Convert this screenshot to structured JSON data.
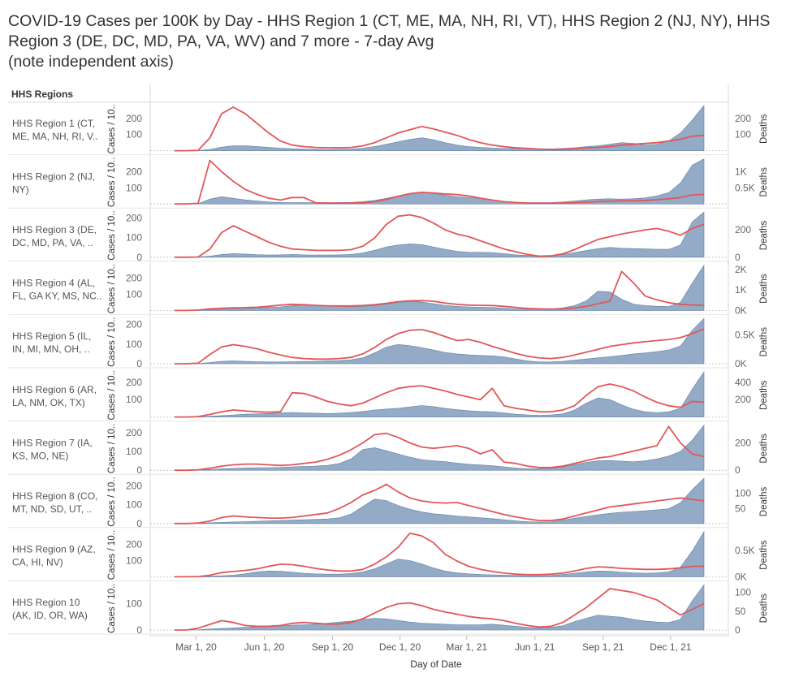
{
  "title": {
    "line1": "COVID-19 Cases per 100K by Day - HHS Region 1 (CT, ME, MA, NH, RI, VT), HHS Region 2 (NJ, NY), HHS",
    "line2": "Region 3 (DE, DC, MD, PA, VA, WV) and 7 more - 7-day Avg",
    "line3": "(note independent axis)"
  },
  "row_header": "HHS Regions",
  "colors": {
    "cases_area": "#8ea7c4",
    "cases_edge": "#5b7fa6",
    "deaths_line": "#e15759"
  },
  "chart_data": {
    "type": "area",
    "title": "COVID-19 Cases per 100K by Day - 7-day Avg (note independent axis)",
    "xlabel": "Day of Date",
    "left_axis_label": "Cases / 10..",
    "right_axis_label": "Deaths",
    "x_ticks": [
      "Mar 1, 20",
      "Jun 1, 20",
      "Sep 1, 20",
      "Dec 1, 20",
      "Mar 1, 21",
      "Jun 1, 21",
      "Sep 1, 21",
      "Dec 1, 21"
    ],
    "x_start": "2020-02-01",
    "x_end": "2022-01-15",
    "series": [
      {
        "name": "Cases per 100K (7-day avg)",
        "axis": "left",
        "mark": "area"
      },
      {
        "name": "Deaths (7-day avg)",
        "axis": "right",
        "mark": "line"
      }
    ],
    "regions": [
      {
        "label": [
          "HHS Region 1 (CT,",
          "ME, MA, NH, RI, V.."
        ],
        "left_ticks": [
          100,
          200
        ],
        "right_ticks": [
          "100",
          "200"
        ],
        "right_values": [
          100,
          200
        ],
        "cases_max": 280,
        "deaths_max": 280,
        "cases": [
          0,
          0,
          1,
          8,
          22,
          30,
          30,
          26,
          20,
          15,
          12,
          10,
          9,
          8,
          9,
          10,
          15,
          25,
          40,
          55,
          70,
          80,
          68,
          50,
          35,
          25,
          20,
          16,
          14,
          14,
          13,
          12,
          11,
          14,
          18,
          25,
          30,
          40,
          50,
          45,
          35,
          40,
          60,
          110,
          190,
          280
        ],
        "deaths": [
          0,
          0,
          2,
          80,
          230,
          270,
          230,
          170,
          110,
          60,
          35,
          25,
          20,
          18,
          18,
          20,
          30,
          50,
          80,
          110,
          130,
          150,
          135,
          115,
          95,
          70,
          50,
          35,
          25,
          18,
          14,
          10,
          8,
          8,
          12,
          16,
          20,
          26,
          34,
          40,
          45,
          50,
          60,
          70,
          90,
          95
        ]
      },
      {
        "label": [
          "HHS Region 2 (NJ,",
          "NY)"
        ],
        "left_ticks": [
          100,
          200
        ],
        "right_ticks": [
          "0.5K",
          "1K"
        ],
        "right_values": [
          500,
          1000
        ],
        "cases_max": 280,
        "deaths_max": 1400,
        "cases": [
          0,
          0,
          2,
          30,
          45,
          35,
          25,
          18,
          12,
          9,
          8,
          8,
          8,
          8,
          9,
          10,
          14,
          22,
          35,
          50,
          65,
          75,
          65,
          55,
          45,
          40,
          35,
          25,
          15,
          10,
          8,
          8,
          9,
          12,
          18,
          25,
          30,
          32,
          30,
          32,
          38,
          50,
          70,
          130,
          240,
          280
        ],
        "deaths": [
          0,
          0,
          20,
          1350,
          1000,
          700,
          450,
          300,
          180,
          120,
          200,
          200,
          35,
          28,
          25,
          25,
          35,
          70,
          140,
          240,
          320,
          360,
          340,
          310,
          290,
          250,
          180,
          120,
          70,
          45,
          30,
          25,
          25,
          30,
          40,
          55,
          70,
          85,
          95,
          100,
          110,
          130,
          160,
          200,
          280,
          300
        ]
      },
      {
        "label": [
          "HHS Region 3 (DE,",
          "DC, MD, PA, VA, .."
        ],
        "left_ticks": [
          0,
          100,
          200
        ],
        "right_ticks": [
          "0",
          "200"
        ],
        "right_values": [
          0,
          200
        ],
        "cases_max": 230,
        "deaths_max": 330,
        "cases": [
          0,
          0,
          1,
          5,
          14,
          18,
          16,
          13,
          11,
          12,
          14,
          12,
          11,
          11,
          12,
          14,
          22,
          35,
          52,
          62,
          68,
          64,
          52,
          40,
          30,
          26,
          25,
          24,
          18,
          12,
          9,
          8,
          9,
          14,
          24,
          34,
          44,
          50,
          46,
          44,
          42,
          40,
          40,
          62,
          180,
          230
        ],
        "deaths": [
          0,
          0,
          2,
          60,
          180,
          230,
          190,
          150,
          110,
          80,
          60,
          55,
          50,
          50,
          50,
          55,
          80,
          140,
          240,
          300,
          310,
          290,
          250,
          200,
          170,
          150,
          120,
          90,
          60,
          40,
          20,
          8,
          10,
          25,
          55,
          95,
          130,
          150,
          170,
          185,
          200,
          210,
          190,
          160,
          210,
          240
        ]
      },
      {
        "label": [
          "HHS Region 4 (AL,",
          "FL, GA KY, MS, NC.."
        ],
        "left_ticks": [
          100,
          200
        ],
        "right_ticks": [
          "0K",
          "1K",
          "2K"
        ],
        "right_values": [
          0,
          1000,
          2000
        ],
        "cases_max": 280,
        "deaths_max": 2200,
        "cases": [
          0,
          0,
          1,
          5,
          8,
          10,
          12,
          14,
          18,
          22,
          30,
          34,
          32,
          28,
          26,
          24,
          26,
          30,
          40,
          50,
          56,
          52,
          42,
          32,
          25,
          22,
          20,
          18,
          14,
          10,
          8,
          8,
          10,
          16,
          30,
          60,
          120,
          115,
          70,
          40,
          30,
          26,
          24,
          50,
          170,
          280
        ],
        "deaths": [
          0,
          0,
          20,
          80,
          110,
          130,
          140,
          160,
          200,
          260,
          300,
          280,
          250,
          230,
          220,
          220,
          240,
          280,
          350,
          430,
          470,
          480,
          450,
          360,
          300,
          260,
          250,
          240,
          200,
          150,
          100,
          80,
          70,
          75,
          120,
          200,
          330,
          450,
          1900,
          1350,
          700,
          520,
          380,
          300,
          270,
          240
        ]
      },
      {
        "label": [
          "HHS Region 5 (IL,",
          "IN, MI, MN, OH, .."
        ],
        "left_ticks": [
          0,
          100,
          200
        ],
        "right_ticks": [
          "0K",
          "0.5K"
        ],
        "right_values": [
          0,
          500
        ],
        "cases_max": 230,
        "deaths_max": 780,
        "cases": [
          0,
          0,
          1,
          6,
          12,
          14,
          12,
          10,
          9,
          9,
          10,
          11,
          12,
          14,
          16,
          20,
          30,
          55,
          85,
          98,
          92,
          82,
          70,
          58,
          50,
          45,
          42,
          40,
          35,
          24,
          14,
          9,
          9,
          12,
          18,
          24,
          30,
          36,
          42,
          50,
          55,
          62,
          70,
          90,
          170,
          230
        ],
        "deaths": [
          0,
          0,
          10,
          160,
          290,
          330,
          300,
          260,
          200,
          150,
          110,
          90,
          80,
          80,
          90,
          110,
          170,
          280,
          420,
          520,
          580,
          590,
          540,
          470,
          400,
          420,
          370,
          300,
          240,
          180,
          130,
          100,
          90,
          110,
          150,
          200,
          250,
          300,
          330,
          360,
          380,
          400,
          420,
          450,
          520,
          600
        ]
      },
      {
        "label": [
          "HHS Region 6 (AR,",
          "LA, NM, OK, TX)"
        ],
        "left_ticks": [
          100,
          200
        ],
        "right_ticks": [
          "200",
          "400"
        ],
        "right_values": [
          200,
          400
        ],
        "cases_max": 260,
        "deaths_max": 520,
        "cases": [
          0,
          0,
          1,
          4,
          8,
          12,
          16,
          18,
          20,
          24,
          26,
          24,
          22,
          20,
          22,
          26,
          32,
          40,
          46,
          50,
          58,
          66,
          60,
          50,
          42,
          36,
          32,
          30,
          24,
          16,
          12,
          10,
          12,
          18,
          40,
          80,
          110,
          100,
          70,
          45,
          30,
          25,
          30,
          50,
          160,
          260
        ],
        "deaths": [
          0,
          0,
          5,
          30,
          60,
          80,
          70,
          60,
          55,
          60,
          280,
          270,
          230,
          180,
          150,
          130,
          160,
          220,
          280,
          330,
          350,
          360,
          330,
          300,
          260,
          230,
          200,
          330,
          130,
          100,
          80,
          60,
          60,
          80,
          130,
          250,
          350,
          380,
          350,
          300,
          230,
          170,
          130,
          110,
          180,
          170
        ]
      },
      {
        "label": [
          "HHS Region 7 (IA,",
          "KS, MO, NE)"
        ],
        "left_ticks": [
          0,
          100,
          200
        ],
        "right_ticks": [
          "0",
          "200"
        ],
        "right_values": [
          0,
          200
        ],
        "cases_max": 240,
        "deaths_max": 330,
        "cases": [
          0,
          0,
          1,
          4,
          8,
          10,
          12,
          14,
          14,
          15,
          18,
          20,
          22,
          26,
          36,
          60,
          110,
          120,
          104,
          86,
          70,
          56,
          50,
          46,
          38,
          32,
          28,
          24,
          18,
          12,
          8,
          8,
          10,
          18,
          30,
          42,
          50,
          52,
          48,
          45,
          50,
          60,
          75,
          100,
          160,
          240
        ],
        "deaths": [
          0,
          0,
          3,
          15,
          30,
          40,
          45,
          45,
          40,
          35,
          40,
          50,
          60,
          80,
          110,
          150,
          200,
          260,
          270,
          240,
          200,
          170,
          160,
          170,
          180,
          160,
          120,
          150,
          60,
          50,
          30,
          20,
          20,
          30,
          50,
          70,
          90,
          100,
          120,
          140,
          160,
          180,
          320,
          200,
          120,
          100
        ]
      },
      {
        "label": [
          "HHS Region 8 (CO,",
          "MT, ND, SD, UT, .."
        ],
        "left_ticks": [
          0,
          100,
          200
        ],
        "right_ticks": [
          "50",
          "100"
        ],
        "right_values": [
          50,
          100
        ],
        "cases_max": 240,
        "deaths_max": 150,
        "cases": [
          0,
          0,
          1,
          4,
          6,
          8,
          10,
          12,
          14,
          16,
          18,
          20,
          22,
          24,
          30,
          50,
          90,
          130,
          122,
          96,
          76,
          62,
          52,
          46,
          40,
          36,
          30,
          26,
          20,
          14,
          10,
          8,
          10,
          18,
          28,
          38,
          46,
          54,
          60,
          64,
          68,
          72,
          78,
          110,
          180,
          240
        ],
        "deaths": [
          0,
          0,
          2,
          8,
          20,
          25,
          22,
          20,
          18,
          18,
          20,
          25,
          30,
          35,
          50,
          70,
          95,
          110,
          130,
          105,
          85,
          75,
          70,
          68,
          70,
          60,
          50,
          40,
          30,
          22,
          15,
          10,
          10,
          15,
          25,
          35,
          45,
          55,
          60,
          65,
          70,
          75,
          80,
          85,
          80,
          75
        ]
      },
      {
        "label": [
          "HHS Region 9 (AZ,",
          "CA, HI, NV)"
        ],
        "left_ticks": [
          100,
          200
        ],
        "right_ticks": [
          "0K",
          "0.5K"
        ],
        "right_values": [
          0,
          500
        ],
        "cases_max": 280,
        "deaths_max": 860,
        "cases": [
          0,
          0,
          1,
          3,
          6,
          10,
          18,
          30,
          36,
          34,
          28,
          22,
          18,
          16,
          16,
          20,
          30,
          50,
          80,
          110,
          100,
          80,
          55,
          35,
          24,
          18,
          14,
          12,
          10,
          8,
          6,
          6,
          8,
          14,
          22,
          30,
          36,
          34,
          28,
          24,
          22,
          24,
          30,
          60,
          160,
          280
        ],
        "deaths": [
          0,
          0,
          5,
          30,
          80,
          100,
          120,
          150,
          200,
          240,
          230,
          200,
          160,
          130,
          110,
          110,
          140,
          240,
          380,
          560,
          830,
          780,
          650,
          430,
          300,
          200,
          140,
          100,
          70,
          50,
          40,
          40,
          50,
          70,
          110,
          160,
          190,
          180,
          160,
          150,
          140,
          140,
          150,
          170,
          200,
          200
        ]
      },
      {
        "label": [
          "HHS Region 10",
          "(AK, ID, OR, WA)"
        ],
        "left_ticks": [
          0,
          100
        ],
        "right_ticks": [
          "0",
          "50",
          "100"
        ],
        "right_values": [
          0,
          50,
          100
        ],
        "cases_max": 170,
        "deaths_max": 120,
        "cases": [
          0,
          0,
          1,
          4,
          6,
          8,
          10,
          12,
          14,
          16,
          18,
          20,
          22,
          26,
          30,
          34,
          40,
          44,
          42,
          36,
          30,
          26,
          24,
          22,
          20,
          20,
          20,
          22,
          18,
          14,
          10,
          8,
          10,
          16,
          32,
          44,
          56,
          52,
          48,
          40,
          34,
          30,
          28,
          40,
          110,
          170
        ],
        "deaths": [
          0,
          0,
          5,
          15,
          25,
          20,
          12,
          10,
          10,
          12,
          18,
          20,
          18,
          16,
          16,
          20,
          30,
          45,
          60,
          70,
          72,
          65,
          55,
          48,
          42,
          36,
          32,
          30,
          25,
          18,
          12,
          8,
          10,
          20,
          40,
          60,
          85,
          110,
          105,
          100,
          90,
          80,
          60,
          40,
          55,
          70
        ]
      }
    ]
  }
}
